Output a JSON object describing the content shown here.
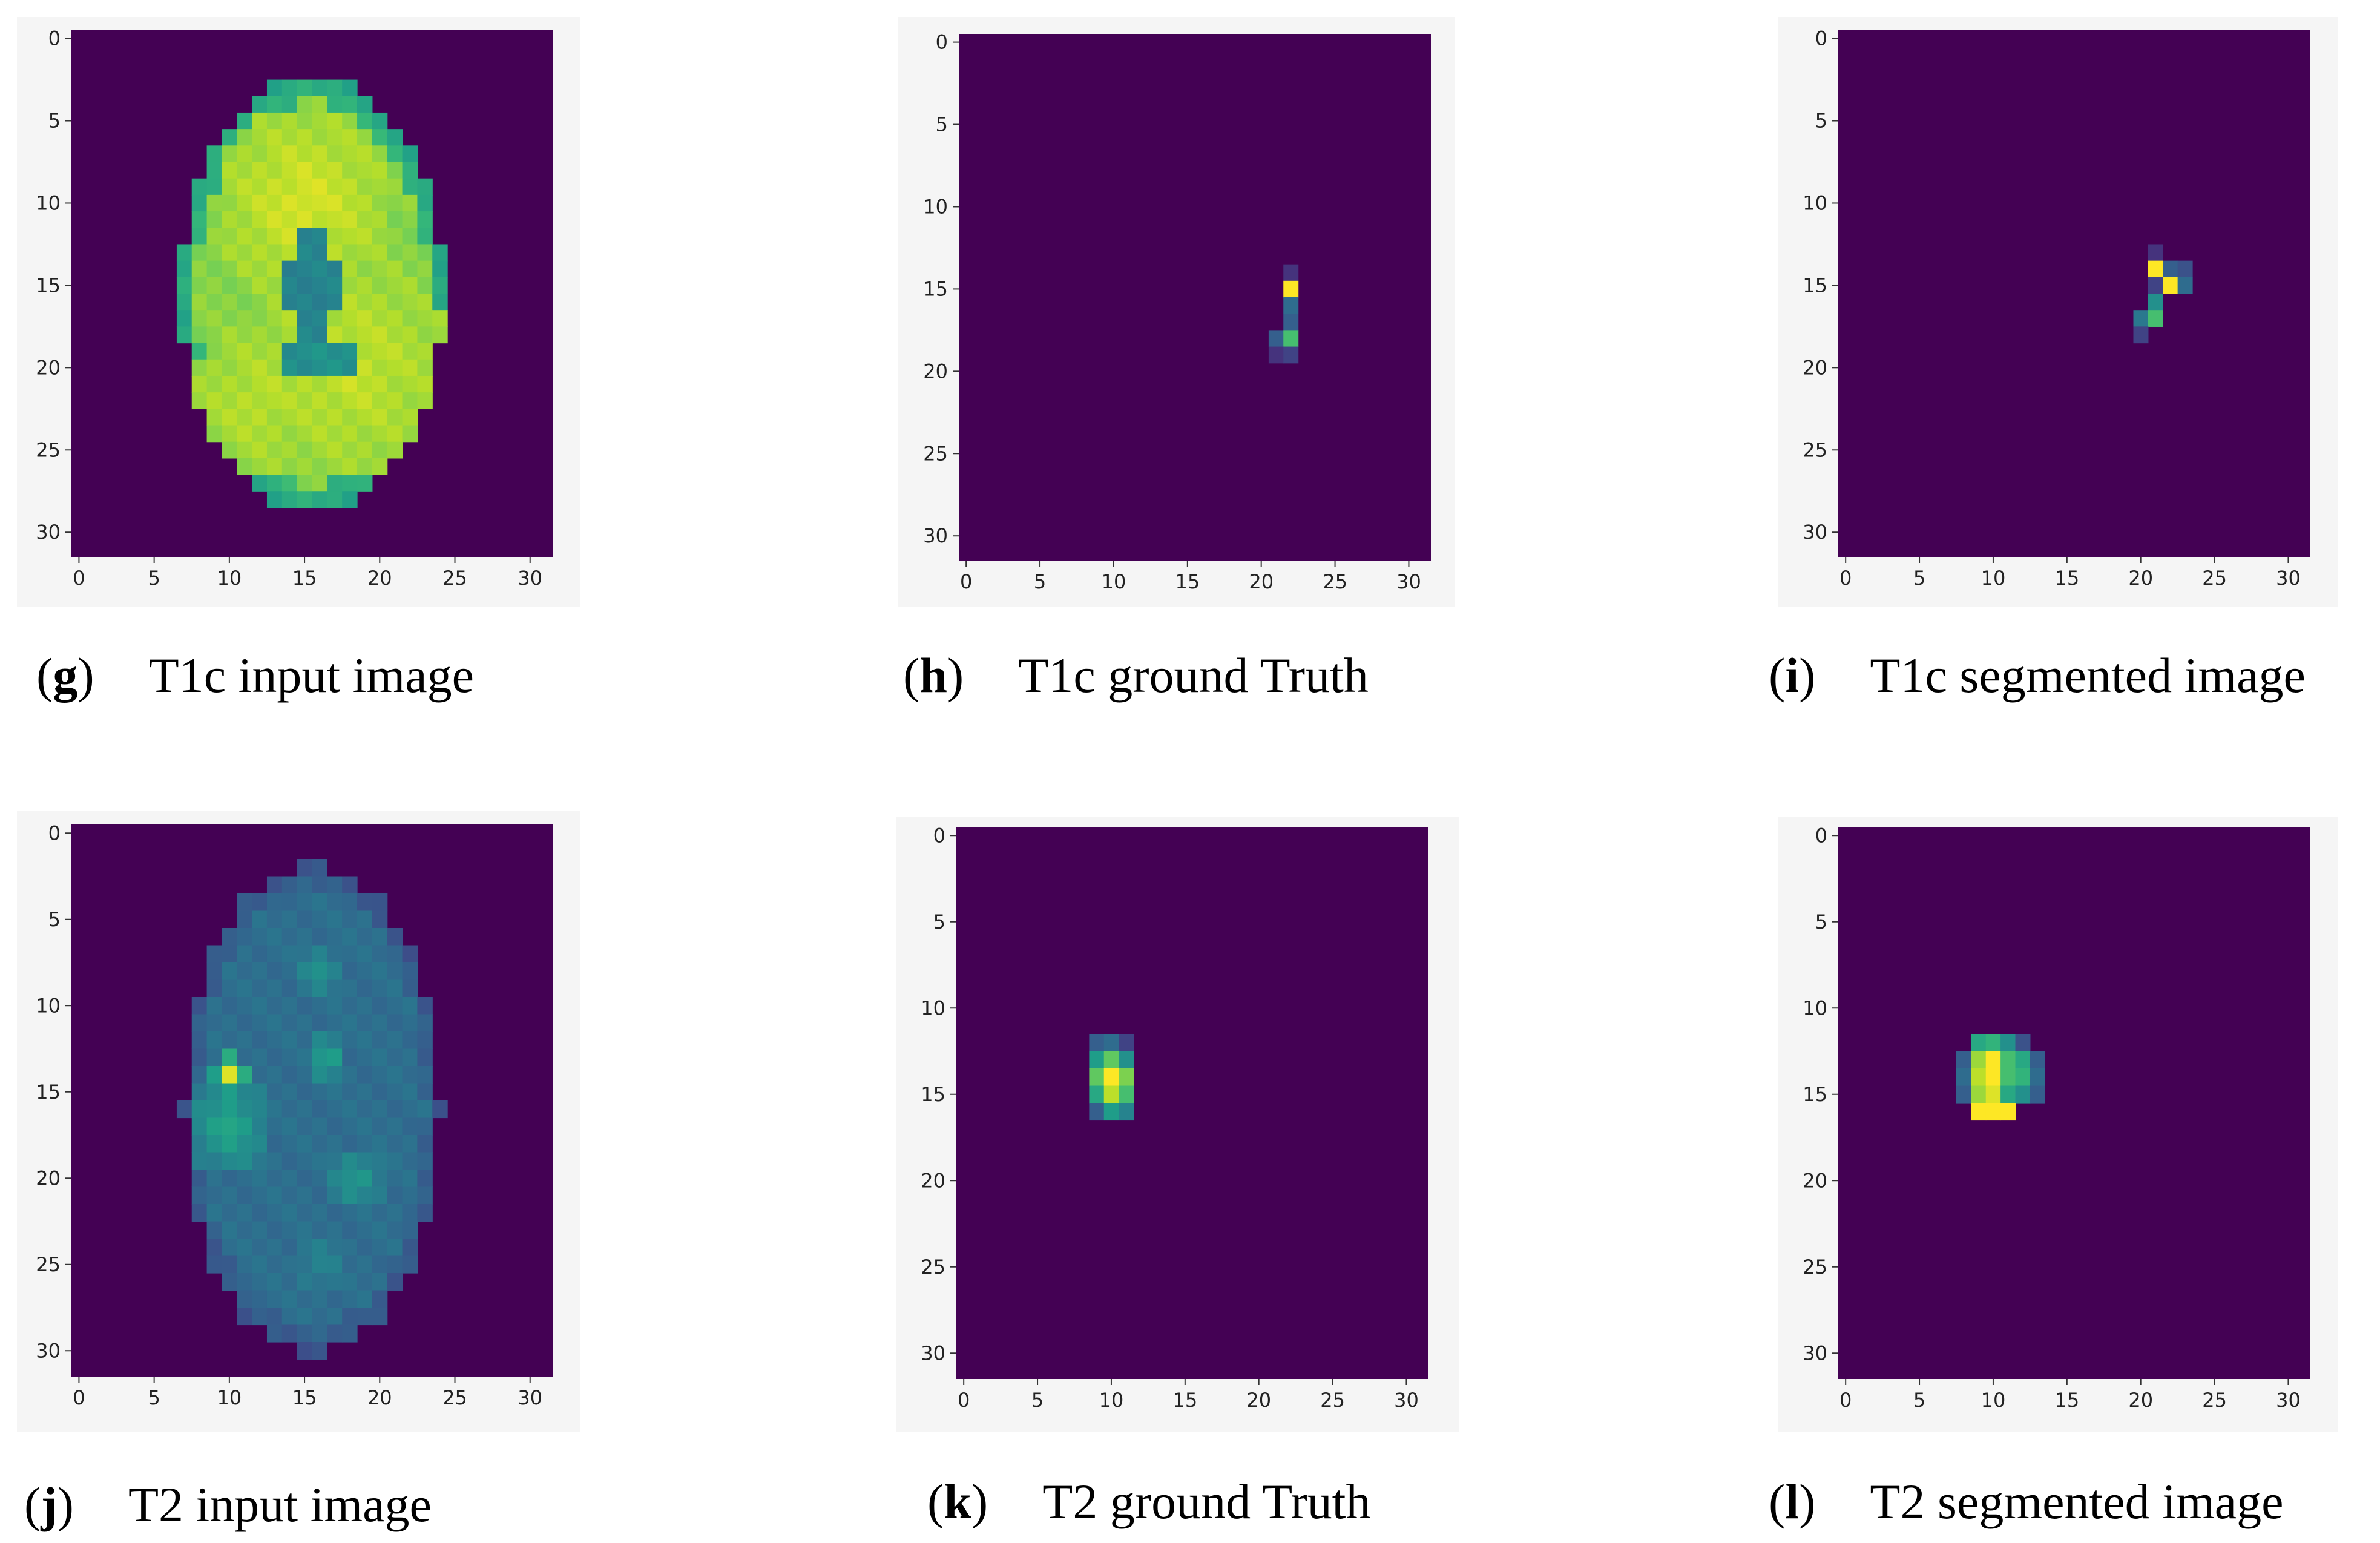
{
  "colormap": {
    "name": "viridis",
    "background": "#440154",
    "stops": [
      "#440154",
      "#482777",
      "#3e4a89",
      "#31688e",
      "#26828e",
      "#1f9e89",
      "#35b779",
      "#6ece58",
      "#b5de2b",
      "#fde725"
    ]
  },
  "axes": {
    "x_ticks": [
      "0",
      "5",
      "10",
      "15",
      "20",
      "25",
      "30"
    ],
    "y_ticks": [
      "0",
      "5",
      "10",
      "15",
      "20",
      "25",
      "30"
    ],
    "range": [
      0,
      31
    ],
    "y_inverted": true
  },
  "panels": [
    {
      "id": "g",
      "letter": "g",
      "caption": "T1c input image",
      "chart_data": {
        "type": "heatmap",
        "grid": [
          32,
          32
        ],
        "description_values": "brain slice, high intensity tissue with lower-intensity ventricles",
        "ellipse": {
          "center": [
            15.5,
            15.5
          ],
          "radius_x": 8.7,
          "radius_y": 13.2
        },
        "blobs": [
          {
            "x": 15,
            "y": 10,
            "level": 0.95,
            "r": 6
          },
          {
            "x": 18,
            "y": 20,
            "level": 0.92,
            "r": 7
          },
          {
            "x": 12,
            "y": 22,
            "level": 0.9,
            "r": 5
          }
        ],
        "holes": [
          {
            "x": 15.5,
            "y": 15,
            "level": 0.45,
            "r_x": 1.7,
            "r_y": 3.4
          },
          {
            "x": 16,
            "y": 19.5,
            "level": 0.5,
            "r_x": 3,
            "r_y": 1
          }
        ],
        "base_level": 0.82
      }
    },
    {
      "id": "h",
      "letter": "h",
      "caption": "T1c ground Truth",
      "chart_data": {
        "type": "heatmap",
        "grid": [
          32,
          32
        ],
        "cells": [
          {
            "x": 22,
            "y": 14,
            "v": 0.15
          },
          {
            "x": 22,
            "y": 15,
            "v": 1.0
          },
          {
            "x": 22,
            "y": 16,
            "v": 0.35
          },
          {
            "x": 22,
            "y": 17,
            "v": 0.3
          },
          {
            "x": 22,
            "y": 18,
            "v": 0.7
          },
          {
            "x": 21,
            "y": 18,
            "v": 0.3
          },
          {
            "x": 21,
            "y": 19,
            "v": 0.15
          },
          {
            "x": 22,
            "y": 19,
            "v": 0.2
          }
        ]
      }
    },
    {
      "id": "i",
      "letter": "i",
      "caption": "T1c segmented image",
      "chart_data": {
        "type": "heatmap",
        "grid": [
          32,
          32
        ],
        "cells": [
          {
            "x": 21,
            "y": 13,
            "v": 0.15
          },
          {
            "x": 21,
            "y": 14,
            "v": 1.0
          },
          {
            "x": 22,
            "y": 14,
            "v": 0.3
          },
          {
            "x": 23,
            "y": 14,
            "v": 0.25
          },
          {
            "x": 22,
            "y": 15,
            "v": 1.0
          },
          {
            "x": 23,
            "y": 15,
            "v": 0.35
          },
          {
            "x": 21,
            "y": 15,
            "v": 0.2
          },
          {
            "x": 21,
            "y": 16,
            "v": 0.5
          },
          {
            "x": 20,
            "y": 17,
            "v": 0.4
          },
          {
            "x": 21,
            "y": 17,
            "v": 0.7
          },
          {
            "x": 20,
            "y": 18,
            "v": 0.2
          }
        ]
      }
    },
    {
      "id": "j",
      "letter": "j",
      "caption": "T2 input image",
      "chart_data": {
        "type": "heatmap",
        "grid": [
          32,
          32
        ],
        "ellipse": {
          "center": [
            15.5,
            16
          ],
          "radius_x": 8.5,
          "radius_y": 14.2
        },
        "base_level": 0.36,
        "blobs": [
          {
            "x": 10,
            "y": 14,
            "level": 0.95,
            "r": 1.3
          },
          {
            "x": 10,
            "y": 17,
            "level": 0.6,
            "r": 3
          },
          {
            "x": 16.5,
            "y": 13,
            "level": 0.6,
            "r": 1.5
          },
          {
            "x": 18.5,
            "y": 20,
            "level": 0.55,
            "r": 2
          },
          {
            "x": 16,
            "y": 8,
            "level": 0.52,
            "r": 1.5
          },
          {
            "x": 16,
            "y": 25,
            "level": 0.45,
            "r": 2
          }
        ],
        "holes": []
      }
    },
    {
      "id": "k",
      "letter": "k",
      "caption": "T2 ground Truth",
      "chart_data": {
        "type": "heatmap",
        "grid": [
          32,
          32
        ],
        "cells": [
          {
            "x": 9,
            "y": 12,
            "v": 0.3
          },
          {
            "x": 10,
            "y": 12,
            "v": 0.35
          },
          {
            "x": 11,
            "y": 12,
            "v": 0.2
          },
          {
            "x": 9,
            "y": 13,
            "v": 0.55
          },
          {
            "x": 10,
            "y": 13,
            "v": 0.75
          },
          {
            "x": 11,
            "y": 13,
            "v": 0.5
          },
          {
            "x": 9,
            "y": 14,
            "v": 0.75
          },
          {
            "x": 10,
            "y": 14,
            "v": 1.0
          },
          {
            "x": 11,
            "y": 14,
            "v": 0.8
          },
          {
            "x": 9,
            "y": 15,
            "v": 0.6
          },
          {
            "x": 10,
            "y": 15,
            "v": 0.9
          },
          {
            "x": 11,
            "y": 15,
            "v": 0.7
          },
          {
            "x": 9,
            "y": 16,
            "v": 0.3
          },
          {
            "x": 10,
            "y": 16,
            "v": 0.55
          },
          {
            "x": 11,
            "y": 16,
            "v": 0.45
          }
        ]
      }
    },
    {
      "id": "l",
      "letter": "l",
      "caption": "T2 segmented image",
      "chart_data": {
        "type": "heatmap",
        "grid": [
          32,
          32
        ],
        "cells": [
          {
            "x": 9,
            "y": 12,
            "v": 0.6
          },
          {
            "x": 10,
            "y": 12,
            "v": 0.65
          },
          {
            "x": 11,
            "y": 12,
            "v": 0.5
          },
          {
            "x": 12,
            "y": 12,
            "v": 0.25
          },
          {
            "x": 8,
            "y": 13,
            "v": 0.3
          },
          {
            "x": 9,
            "y": 13,
            "v": 0.85
          },
          {
            "x": 10,
            "y": 13,
            "v": 1.0
          },
          {
            "x": 11,
            "y": 13,
            "v": 0.7
          },
          {
            "x": 12,
            "y": 13,
            "v": 0.6
          },
          {
            "x": 13,
            "y": 13,
            "v": 0.3
          },
          {
            "x": 8,
            "y": 14,
            "v": 0.35
          },
          {
            "x": 9,
            "y": 14,
            "v": 0.9
          },
          {
            "x": 10,
            "y": 14,
            "v": 1.0
          },
          {
            "x": 11,
            "y": 14,
            "v": 0.7
          },
          {
            "x": 12,
            "y": 14,
            "v": 0.65
          },
          {
            "x": 13,
            "y": 14,
            "v": 0.35
          },
          {
            "x": 8,
            "y": 15,
            "v": 0.3
          },
          {
            "x": 9,
            "y": 15,
            "v": 0.85
          },
          {
            "x": 10,
            "y": 15,
            "v": 0.95
          },
          {
            "x": 11,
            "y": 15,
            "v": 0.6
          },
          {
            "x": 12,
            "y": 15,
            "v": 0.5
          },
          {
            "x": 13,
            "y": 15,
            "v": 0.3
          },
          {
            "x": 9,
            "y": 16,
            "v": 1.0
          },
          {
            "x": 10,
            "y": 16,
            "v": 1.0
          },
          {
            "x": 11,
            "y": 16,
            "v": 1.0
          }
        ]
      }
    }
  ]
}
